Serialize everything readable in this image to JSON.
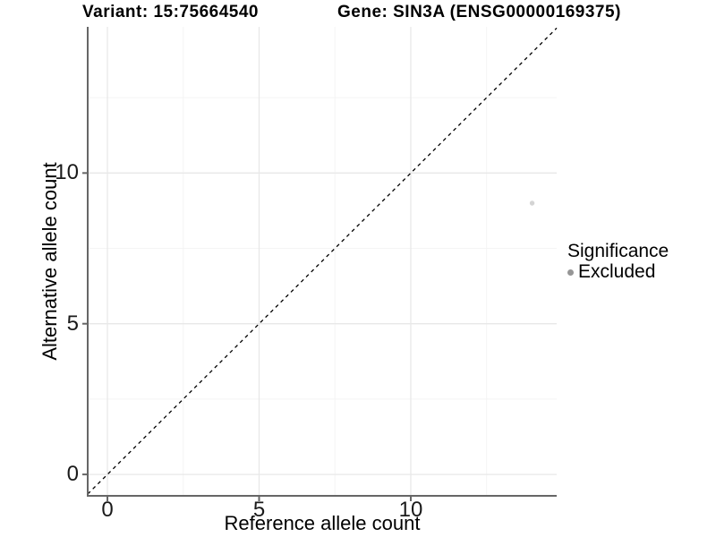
{
  "colors": {
    "background": "#ffffff",
    "grid_major": "#e8e8e8",
    "grid_minor": "#f4f4f4",
    "axis_line": "#666666",
    "tick_label": "#1a1a1a",
    "text": "#000000",
    "point": "#d4d4d4",
    "legend_dot": "#969696",
    "identity_line": "#000000"
  },
  "chart_data": {
    "type": "scatter",
    "titles": {
      "left": "Variant: 15:75664540",
      "right": "Gene: SIN3A (ENSG00000169375)"
    },
    "xlabel": "Reference allele count",
    "ylabel": "Alternative allele count",
    "xlim": [
      -0.65,
      14.81
    ],
    "ylim": [
      -0.71,
      14.85
    ],
    "x_ticks": [
      0,
      5,
      10
    ],
    "y_ticks": [
      0,
      5,
      10
    ],
    "x_minor_ticks": [
      2.5,
      7.5,
      12.5
    ],
    "y_minor_ticks": [
      2.5,
      7.5,
      12.5
    ],
    "grid": true,
    "identity_line": {
      "equation": "y = x",
      "style": "dashed"
    },
    "series": [
      {
        "name": "Excluded",
        "points": [
          {
            "x": 14,
            "y": 9
          }
        ]
      }
    ],
    "legend": {
      "title": "Significance",
      "position": "right",
      "items": [
        {
          "label": "Excluded"
        }
      ]
    }
  }
}
